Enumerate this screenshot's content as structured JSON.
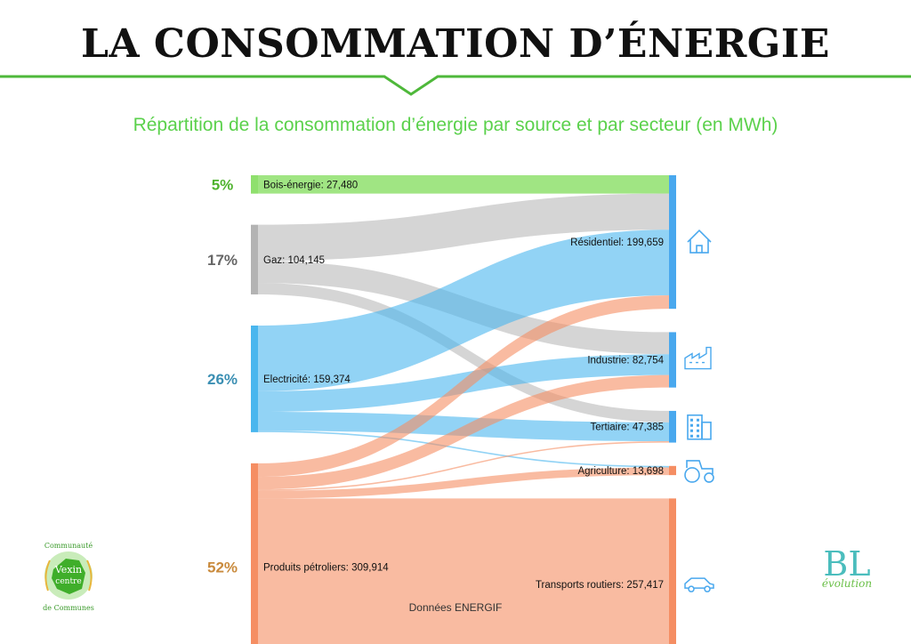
{
  "header": {
    "title": "LA CONSOMMATION D’ÉNERGIE",
    "subtitle": "Répartition de la consommation d’énergie par source et par secteur (en MWh)"
  },
  "footer": {
    "source": "Données ENERGIF"
  },
  "logos": {
    "left": {
      "line1": "Communauté",
      "line2": "Vexin",
      "line3": "centre",
      "line4": "de Communes"
    },
    "right": {
      "main": "BL",
      "sub": "évolution"
    }
  },
  "colors": {
    "green_accent": "#5bd14c",
    "bois": "#8fe06d",
    "gaz": "#b3b3b3",
    "electricite": "#49b6ee",
    "petrole": "#f58e63",
    "residentiel": "#49a8ee",
    "industrie": "#49a8ee",
    "tertiaire": "#49a8ee",
    "agriculture": "#f58e63",
    "transports": "#f58e63"
  },
  "chart_data": {
    "type": "sankey",
    "title": "Répartition de la consommation d’énergie par source et par secteur (en MWh)",
    "sources": [
      {
        "key": "bois",
        "label": "Bois-énergie: 27,480",
        "value": 27480,
        "percent": "5%",
        "pct_color": "#4fb32e"
      },
      {
        "key": "gaz",
        "label": "Gaz: 104,145",
        "value": 104145,
        "percent": "17%",
        "pct_color": "#666666"
      },
      {
        "key": "electricite",
        "label": "Electricité: 159,374",
        "value": 159374,
        "percent": "26%",
        "pct_color": "#3b8fb3"
      },
      {
        "key": "petrole",
        "label": "Produits pétroliers: 309,914",
        "value": 309914,
        "percent": "52%",
        "pct_color": "#c98a3c"
      }
    ],
    "targets": [
      {
        "key": "residentiel",
        "label": "Résidentiel: 199,659",
        "value": 199659,
        "icon": "house-icon"
      },
      {
        "key": "industrie",
        "label": "Industrie: 82,754",
        "value": 82754,
        "icon": "factory-icon"
      },
      {
        "key": "tertiaire",
        "label": "Tertiaire: 47,385",
        "value": 47385,
        "icon": "office-building-icon"
      },
      {
        "key": "agriculture",
        "label": "Agriculture: 13,698",
        "value": 13698,
        "icon": "tractor-icon"
      },
      {
        "key": "transports",
        "label": "Transports routiers: 257,417",
        "value": 257417,
        "icon": "car-icon"
      }
    ],
    "flows": [
      {
        "source": "bois",
        "target": "residentiel",
        "value": 27480
      },
      {
        "source": "gaz",
        "target": "residentiel",
        "value": 54000
      },
      {
        "source": "gaz",
        "target": "industrie",
        "value": 33000
      },
      {
        "source": "gaz",
        "target": "tertiaire",
        "value": 17145
      },
      {
        "source": "electricite",
        "target": "residentiel",
        "value": 98000
      },
      {
        "source": "electricite",
        "target": "industrie",
        "value": 31000
      },
      {
        "source": "electricite",
        "target": "tertiaire",
        "value": 28200
      },
      {
        "source": "electricite",
        "target": "agriculture",
        "value": 2174
      },
      {
        "source": "petrole",
        "target": "residentiel",
        "value": 20179
      },
      {
        "source": "petrole",
        "target": "industrie",
        "value": 18754
      },
      {
        "source": "petrole",
        "target": "tertiaire",
        "value": 2040
      },
      {
        "source": "petrole",
        "target": "agriculture",
        "value": 11524
      },
      {
        "source": "petrole",
        "target": "transports",
        "value": 257417
      }
    ]
  }
}
